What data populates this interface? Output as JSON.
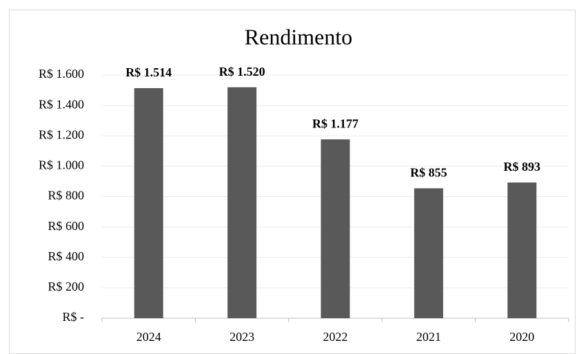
{
  "chart_data": {
    "type": "bar",
    "title": "Rendimento",
    "categories": [
      "2024",
      "2023",
      "2022",
      "2021",
      "2020"
    ],
    "values": [
      1514,
      1520,
      1177,
      855,
      893
    ],
    "value_labels": [
      "R$ 1.514",
      "R$ 1.520",
      "R$ 1.177",
      "R$ 855",
      "R$ 893"
    ],
    "color": "#595959",
    "ylim": [
      0,
      1600
    ],
    "yticks": [
      {
        "value": 0,
        "label": "R$ -"
      },
      {
        "value": 200,
        "label": "R$ 200"
      },
      {
        "value": 400,
        "label": "R$ 400"
      },
      {
        "value": 600,
        "label": "R$ 600"
      },
      {
        "value": 800,
        "label": "R$ 800"
      },
      {
        "value": 1000,
        "label": "R$ 1.000"
      },
      {
        "value": 1200,
        "label": "R$ 1.200"
      },
      {
        "value": 1400,
        "label": "R$ 1.400"
      },
      {
        "value": 1600,
        "label": "R$ 1.600"
      }
    ],
    "grid": true
  }
}
